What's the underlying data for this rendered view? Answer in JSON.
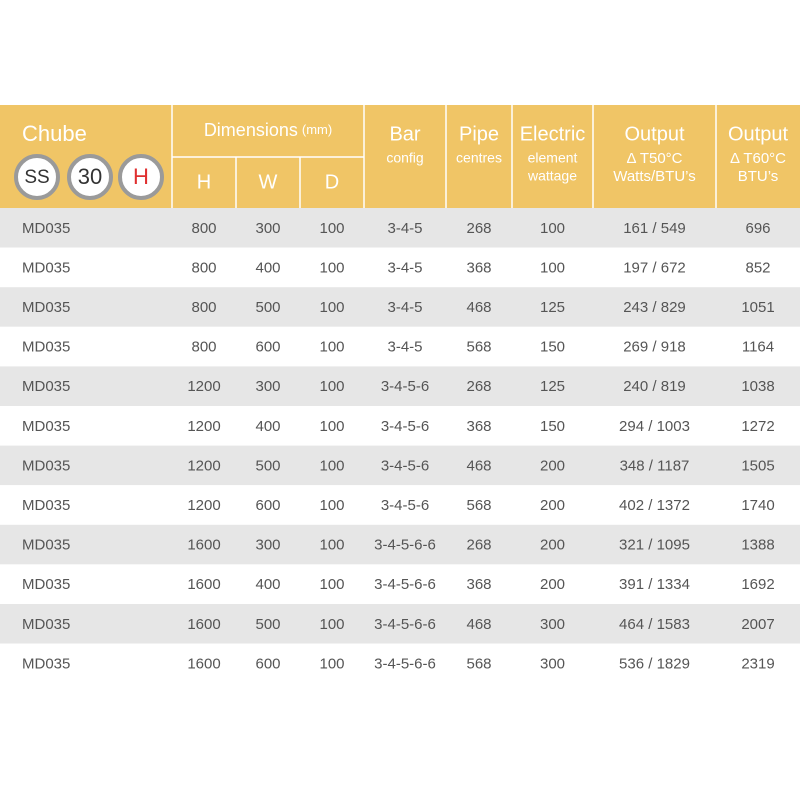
{
  "header": {
    "title": "Chube",
    "badges": [
      "SS",
      "30",
      "H"
    ],
    "dimensions": {
      "title": "Dimensions",
      "unit": "(mm)",
      "sub": [
        "H",
        "W",
        "D"
      ]
    },
    "columns": [
      {
        "title": "Bar",
        "sub": [
          "config"
        ]
      },
      {
        "title": "Pipe",
        "sub": [
          "centres"
        ]
      },
      {
        "title": "Electric",
        "sub": [
          "element",
          "wattage"
        ]
      },
      {
        "title": "Output",
        "sub": [
          "Δ T50°C",
          "Watts/BTU’s"
        ]
      },
      {
        "title": "Output",
        "sub": [
          "Δ T60°C",
          "BTU’s"
        ]
      }
    ]
  },
  "rows": [
    [
      "MD035",
      "800",
      "300",
      "100",
      "3-4-5",
      "268",
      "100",
      "161 / 549",
      "696"
    ],
    [
      "MD035",
      "800",
      "400",
      "100",
      "3-4-5",
      "368",
      "100",
      "197 / 672",
      "852"
    ],
    [
      "MD035",
      "800",
      "500",
      "100",
      "3-4-5",
      "468",
      "125",
      "243 / 829",
      "1051"
    ],
    [
      "MD035",
      "800",
      "600",
      "100",
      "3-4-5",
      "568",
      "150",
      "269 / 918",
      "1164"
    ],
    [
      "MD035",
      "1200",
      "300",
      "100",
      "3-4-5-6",
      "268",
      "125",
      "240 / 819",
      "1038"
    ],
    [
      "MD035",
      "1200",
      "400",
      "100",
      "3-4-5-6",
      "368",
      "150",
      "294 / 1003",
      "1272"
    ],
    [
      "MD035",
      "1200",
      "500",
      "100",
      "3-4-5-6",
      "468",
      "200",
      "348 / 1187",
      "1505"
    ],
    [
      "MD035",
      "1200",
      "600",
      "100",
      "3-4-5-6",
      "568",
      "200",
      "402 / 1372",
      "1740"
    ],
    [
      "MD035",
      "1600",
      "300",
      "100",
      "3-4-5-6-6",
      "268",
      "200",
      "321 / 1095",
      "1388"
    ],
    [
      "MD035",
      "1600",
      "400",
      "100",
      "3-4-5-6-6",
      "368",
      "200",
      "391 / 1334",
      "1692"
    ],
    [
      "MD035",
      "1600",
      "500",
      "100",
      "3-4-5-6-6",
      "468",
      "300",
      "464 / 1583",
      "2007"
    ],
    [
      "MD035",
      "1600",
      "600",
      "100",
      "3-4-5-6-6",
      "568",
      "300",
      "536 / 1829",
      "2319"
    ]
  ]
}
